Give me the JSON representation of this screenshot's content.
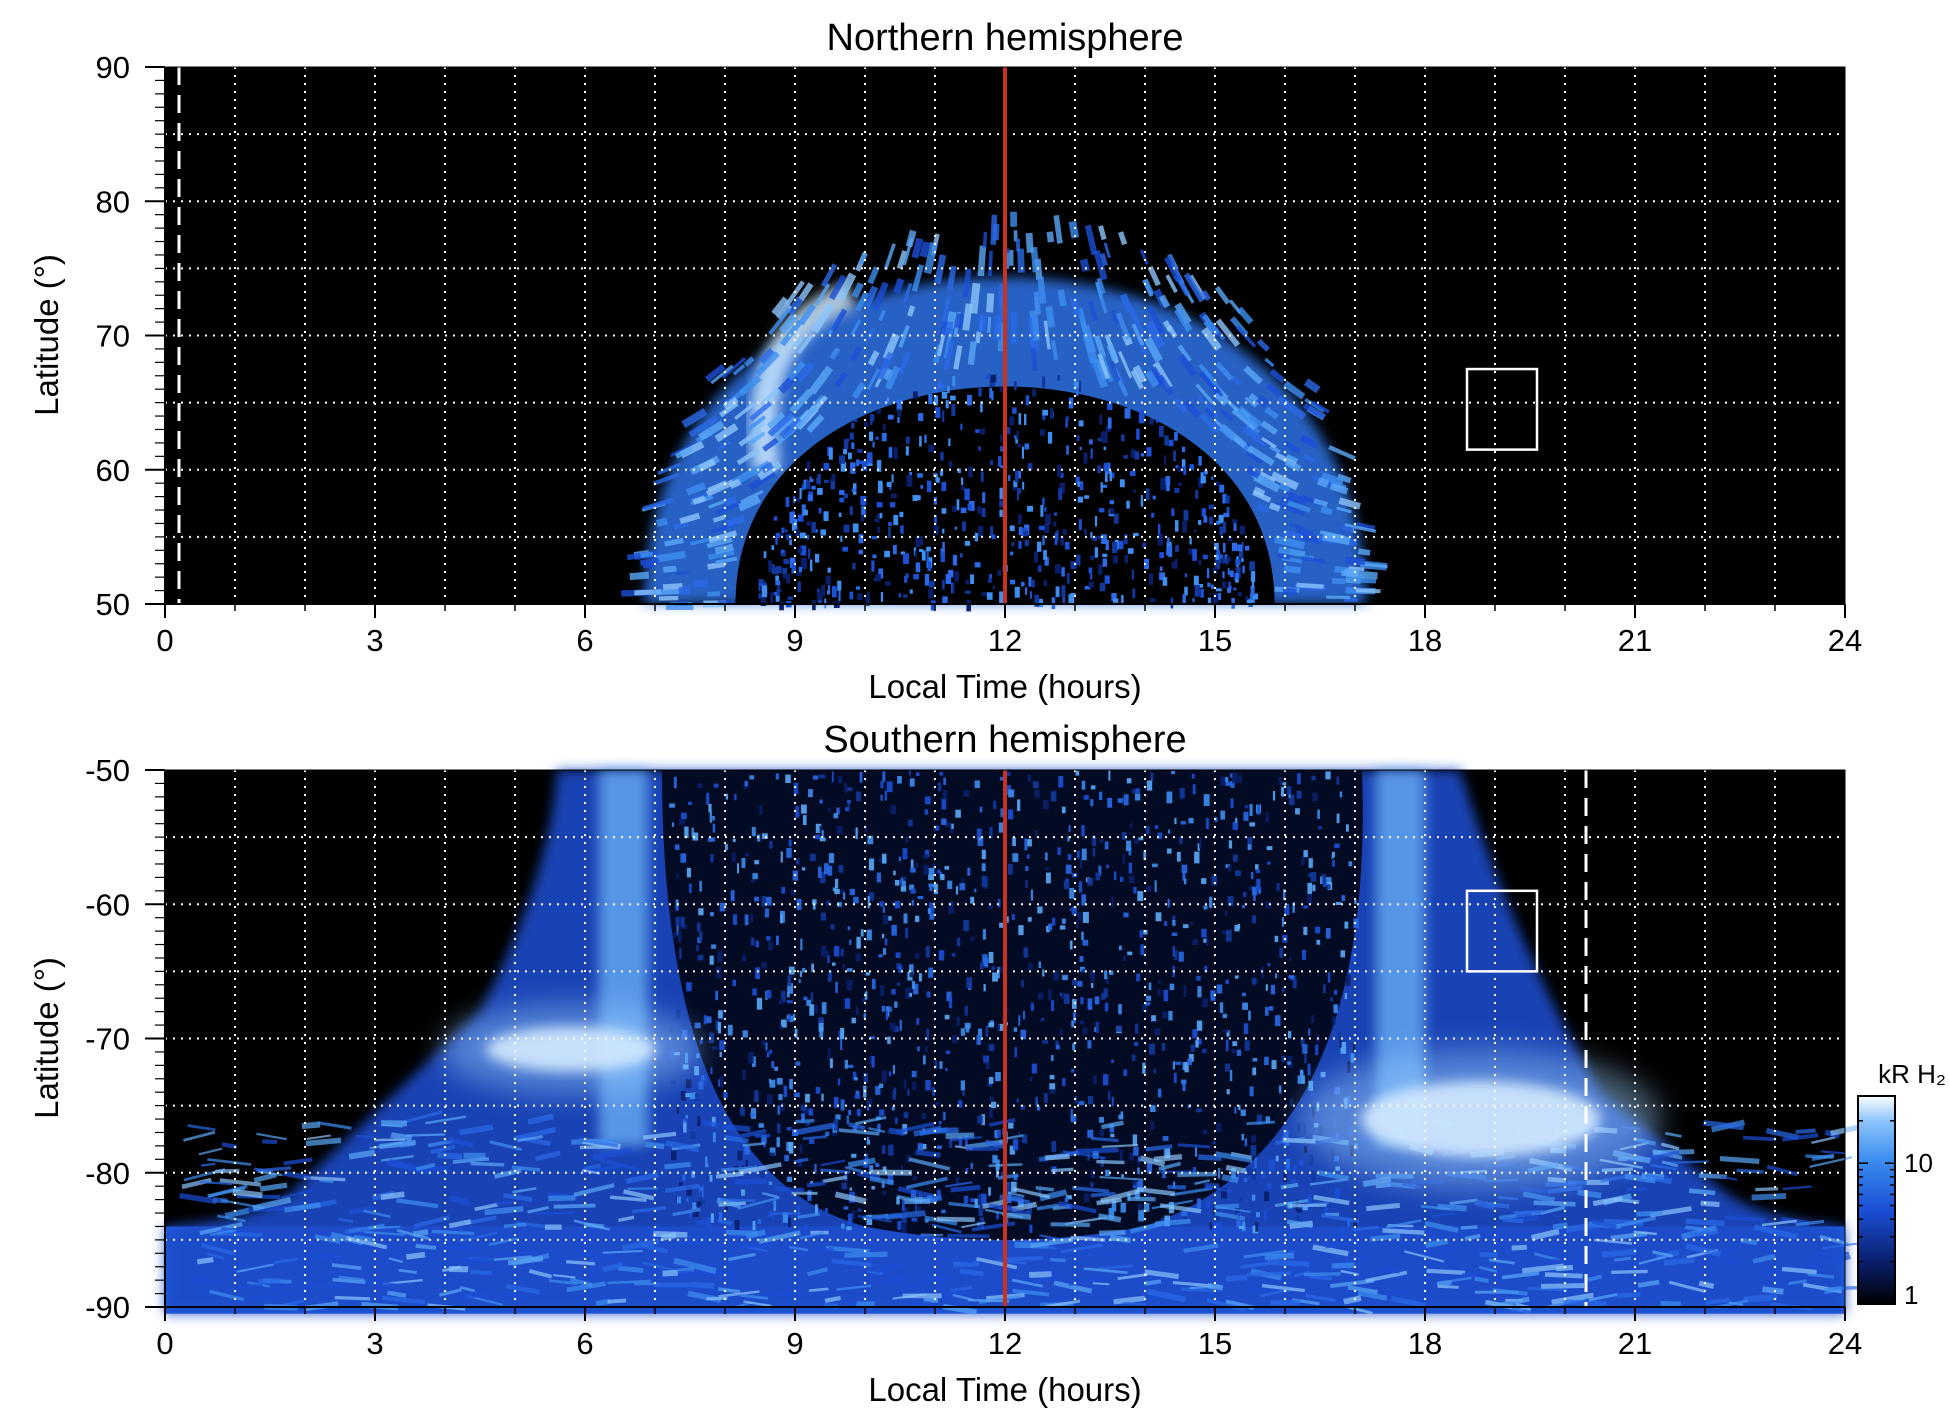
{
  "colors": {
    "background": "#000000",
    "noon_line": "#c8321e",
    "grid": "#ffffff",
    "colorbar": [
      "#000000",
      "#0a1f6b",
      "#1b4fd6",
      "#3d8ef0",
      "#8cc4fb",
      "#ffffff"
    ]
  },
  "colorbar": {
    "label": "kR H₂",
    "tick_labels": [
      "10",
      "1"
    ],
    "scale": "log"
  },
  "chart_data": [
    {
      "type": "heatmap",
      "title": "Northern hemisphere",
      "xlabel": "Local Time (hours)",
      "ylabel": "Latitude (°)",
      "xlim": [
        0,
        24
      ],
      "ylim": [
        50,
        90
      ],
      "x_ticks": [
        "0",
        "3",
        "6",
        "9",
        "12",
        "15",
        "18",
        "21",
        "24"
      ],
      "y_ticks": [
        "50",
        "60",
        "70",
        "80",
        "90"
      ],
      "grid": true,
      "noon_line_x": 12,
      "dashed_line_x": 0.2,
      "box": {
        "x": [
          18.6,
          19.6
        ],
        "y": [
          61.5,
          67.5
        ]
      },
      "auroral_oval": {
        "center_local_time": 12,
        "poleward_edge_lat": 79.5,
        "equatorward_edge_lat": 69,
        "edge_local_time_at_50": [
          7.0,
          17.3
        ],
        "inner_edge_local_time_at_50": [
          8.2,
          15.9
        ]
      }
    },
    {
      "type": "heatmap",
      "title": "Southern hemisphere",
      "xlabel": "Local Time (hours)",
      "ylabel": "Latitude (°)",
      "xlim": [
        0,
        24
      ],
      "ylim": [
        -90,
        -50
      ],
      "x_ticks": [
        "0",
        "3",
        "6",
        "9",
        "12",
        "15",
        "18",
        "21",
        "24"
      ],
      "y_ticks": [
        "-50",
        "-60",
        "-70",
        "-80",
        "-90"
      ],
      "grid": true,
      "noon_line_x": 12,
      "dashed_line_x": 20.3,
      "box": {
        "x": [
          18.6,
          19.6
        ],
        "y": [
          -65,
          -59
        ]
      },
      "bright_spots": [
        {
          "x": 5.8,
          "y": -70.8
        },
        {
          "x": 18.8,
          "y": -76
        }
      ]
    }
  ]
}
